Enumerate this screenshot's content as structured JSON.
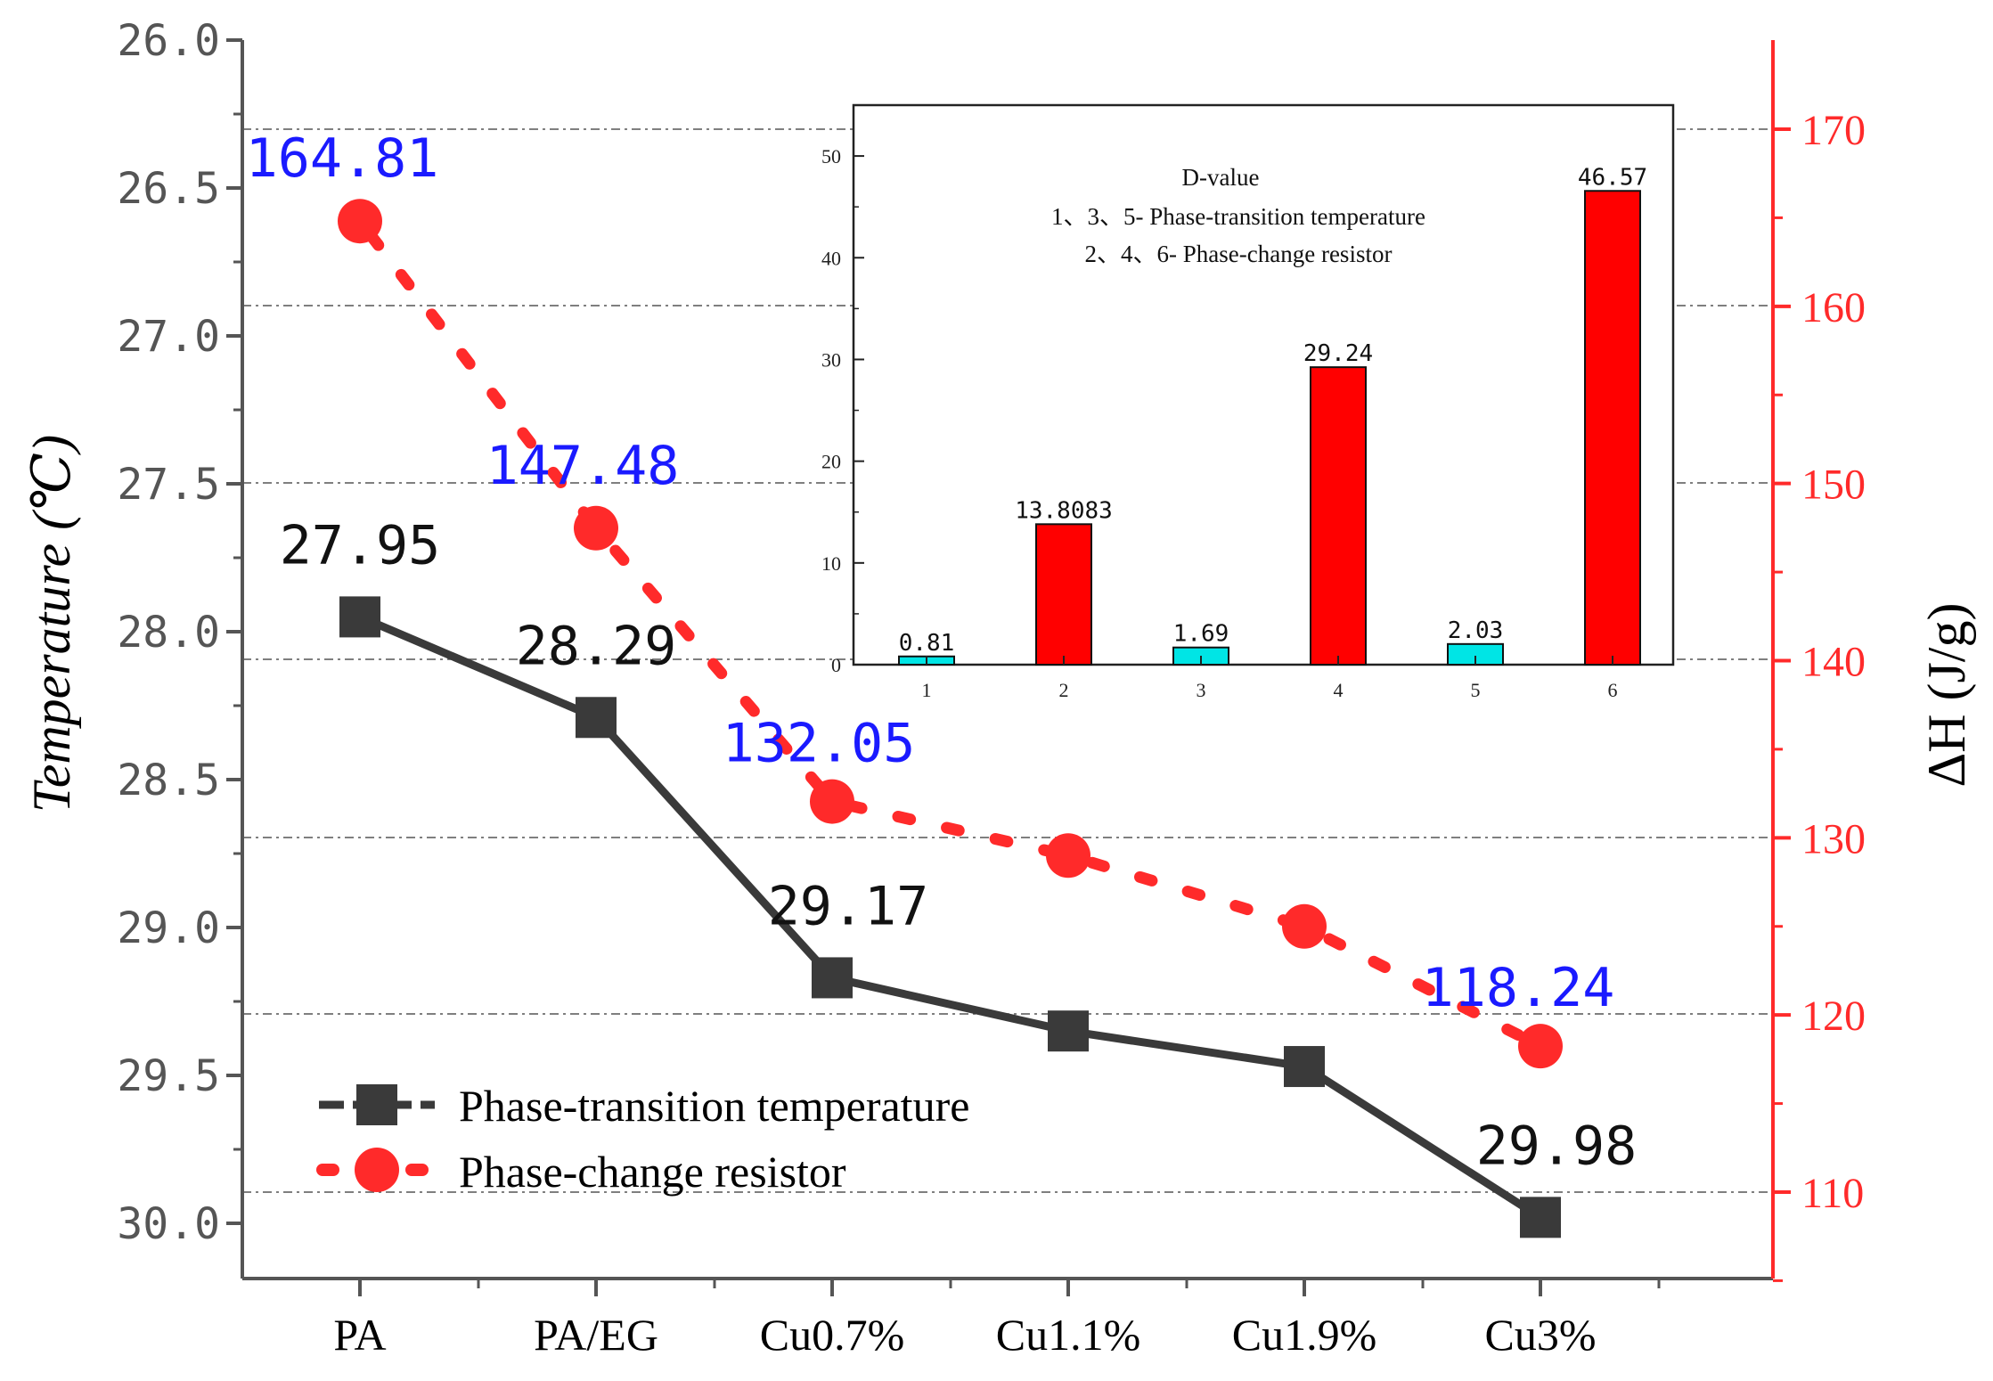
{
  "chart_data": [
    {
      "type": "line",
      "x": {
        "label": "",
        "categories": [
          "PA",
          "PA/EG",
          "Cu0.7%",
          "Cu1.1%",
          "Cu1.9%",
          "Cu3%"
        ]
      },
      "y_left": {
        "label": "Temperature (℃)",
        "label_prefix": "Temperature",
        "label_unit": "(℃)",
        "range": [
          26.0,
          30.0
        ],
        "inverted": true,
        "ticks": [
          "26.0",
          "26.5",
          "27.0",
          "27.5",
          "28.0",
          "28.5",
          "29.0",
          "29.5",
          "30.0"
        ],
        "color": "#000000"
      },
      "y_right": {
        "label": "ΔH (J/g)",
        "label_symbol": "ΔH",
        "label_unit": "(J/g)",
        "range": [
          105,
          173
        ],
        "ticks": [
          "110",
          "120",
          "130",
          "140",
          "150",
          "160",
          "170"
        ],
        "color": "#ff2a2a"
      },
      "series": [
        {
          "name": "Phase-transition temperature",
          "axis": "left",
          "values": [
            27.95,
            28.29,
            29.17,
            29.35,
            29.47,
            29.98
          ],
          "labels": [
            "27.95",
            "28.29",
            "29.17",
            "",
            "",
            "29.98"
          ],
          "color": "#3a3a3a",
          "label_color": "#111111"
        },
        {
          "name": "Phase-change resistor",
          "axis": "right",
          "values": [
            164.81,
            147.48,
            132.05,
            129.0,
            125.0,
            118.24
          ],
          "labels": [
            "164.81",
            "147.48",
            "132.05",
            "",
            "",
            "118.24"
          ],
          "color": "#ff2a2a",
          "label_color": "#1a1aff"
        }
      ],
      "gridlines": "horizontal dashed",
      "legend": "bottom-left"
    },
    {
      "type": "bar",
      "title": "D-value",
      "annotations": [
        "1、3、5- Phase-transition temperature",
        "2、4、6- Phase-change resistor"
      ],
      "categories": [
        "1",
        "2",
        "3",
        "4",
        "5",
        "6"
      ],
      "values": [
        0.81,
        13.8083,
        1.69,
        29.24,
        2.03,
        46.57
      ],
      "value_labels": [
        "0.81",
        "13.8083",
        "1.69",
        "29.24",
        "2.03",
        "46.57"
      ],
      "colors": [
        "#00e5e5",
        "#ff0000",
        "#00e5e5",
        "#ff0000",
        "#00e5e5",
        "#ff0000"
      ],
      "ylim": [
        0,
        55
      ],
      "yticks": [
        "0",
        "10",
        "20",
        "30",
        "40",
        "50"
      ],
      "legend": "top-center"
    }
  ]
}
